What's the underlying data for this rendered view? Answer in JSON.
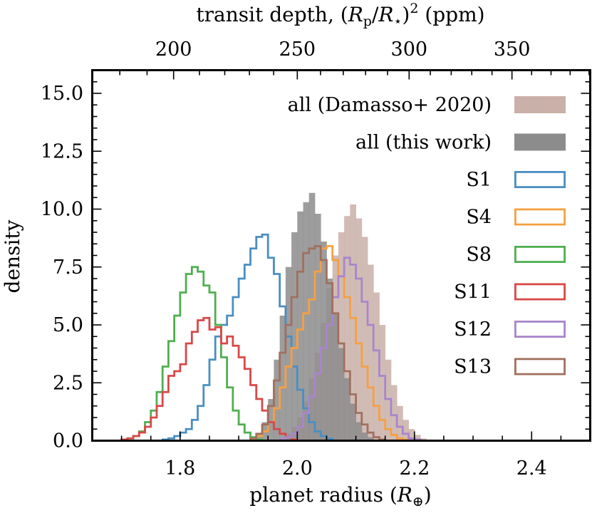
{
  "chart_data": {
    "type": "histogram",
    "xlabel": "planet radius (R⊕)",
    "ylabel": "density",
    "top_xlabel": "transit depth, (Rp/R⋆)² (ppm)",
    "xlim": [
      1.65,
      2.5
    ],
    "ylim": [
      0,
      16
    ],
    "xticks": [
      1.8,
      2.0,
      2.2,
      2.4
    ],
    "xtick_labels": [
      "1.8",
      "2.0",
      "2.2",
      "2.4"
    ],
    "yticks": [
      0,
      2.5,
      5,
      7.5,
      10,
      12.5,
      15
    ],
    "ytick_labels": [
      "0.0",
      "2.5",
      "5.0",
      "7.5",
      "10.0",
      "12.5",
      "15.0"
    ],
    "top_xticks_ppm": [
      200,
      250,
      300,
      350
    ],
    "top_xtick_labels": [
      "200",
      "250",
      "300",
      "350"
    ],
    "radius_at_ppm_250": 2.0,
    "legend_position": "right",
    "series": [
      {
        "name": "all (Damasso+ 2020)",
        "style": "filled",
        "color": "#c9b0a8",
        "start": 1.96,
        "width": 0.01,
        "values": [
          0.05,
          0.1,
          0.3,
          0.6,
          1.0,
          1.7,
          2.7,
          3.8,
          5.1,
          6.6,
          8.0,
          9.0,
          9.7,
          10.2,
          9.6,
          8.8,
          7.6,
          6.4,
          5.0,
          3.5,
          2.4,
          1.5,
          0.9,
          0.5,
          0.25,
          0.1,
          0.05
        ]
      },
      {
        "name": "all (this work)",
        "style": "filled",
        "color": "#8c8c8c",
        "start": 1.92,
        "width": 0.01,
        "values": [
          0.1,
          0.3,
          0.8,
          1.8,
          3.5,
          5.4,
          7.5,
          9.0,
          9.9,
          10.3,
          10.7,
          9.8,
          8.6,
          7.0,
          5.5,
          4.0,
          2.7,
          1.6,
          0.8,
          0.35,
          0.15,
          0.05
        ]
      },
      {
        "name": "S1",
        "style": "step",
        "color": "#4a8ec2",
        "start": 1.77,
        "width": 0.01,
        "values": [
          0.05,
          0.1,
          0.2,
          0.35,
          0.5,
          0.9,
          1.5,
          2.4,
          3.5,
          4.5,
          5.0,
          5.4,
          6.2,
          7.0,
          7.6,
          8.3,
          8.8,
          8.9,
          7.9,
          7.2,
          5.8,
          4.5,
          3.2,
          2.2,
          1.4,
          0.8,
          0.4,
          0.2,
          0.08
        ]
      },
      {
        "name": "S4",
        "style": "step",
        "color": "#f5a043",
        "start": 1.92,
        "width": 0.01,
        "values": [
          0.05,
          0.2,
          0.4,
          0.8,
          1.4,
          2.3,
          3.2,
          4.0,
          4.8,
          5.5,
          6.1,
          7.3,
          8.3,
          8.4,
          7.8,
          7.1,
          6.2,
          5.3,
          4.2,
          3.2,
          2.3,
          1.5,
          0.9,
          0.5,
          0.25,
          0.1,
          0.05
        ]
      },
      {
        "name": "S8",
        "style": "step",
        "color": "#4fae50",
        "start": 1.7,
        "width": 0.01,
        "values": [
          0.05,
          0.1,
          0.2,
          0.4,
          0.8,
          1.3,
          2.1,
          3.2,
          4.3,
          5.4,
          6.4,
          7.2,
          7.5,
          7.3,
          6.7,
          6.4,
          5.0,
          3.6,
          2.3,
          1.3,
          0.7,
          0.35,
          0.15,
          0.05
        ]
      },
      {
        "name": "S11",
        "style": "step",
        "color": "#d94848",
        "start": 1.7,
        "width": 0.01,
        "values": [
          0.05,
          0.1,
          0.2,
          0.35,
          0.6,
          1.0,
          1.5,
          2.1,
          2.8,
          3.0,
          3.3,
          4.2,
          4.7,
          5.2,
          5.3,
          4.8,
          4.9,
          4.2,
          4.5,
          4.1,
          3.6,
          3.1,
          2.4,
          1.8,
          1.3,
          0.8,
          0.5,
          0.3,
          0.15,
          0.05
        ]
      },
      {
        "name": "S12",
        "style": "step",
        "color": "#a985cc",
        "start": 1.97,
        "width": 0.01,
        "values": [
          0.05,
          0.15,
          0.3,
          0.6,
          1.2,
          1.9,
          2.9,
          4.0,
          5.0,
          6.2,
          7.1,
          7.9,
          7.6,
          7.0,
          6.0,
          5.0,
          3.9,
          2.8,
          1.8,
          1.1,
          0.6,
          0.3,
          0.1,
          0.05
        ]
      },
      {
        "name": "S13",
        "style": "step",
        "color": "#a0705f",
        "start": 1.92,
        "width": 0.01,
        "values": [
          0.1,
          0.3,
          0.7,
          1.5,
          2.6,
          3.8,
          5.0,
          6.2,
          7.3,
          8.1,
          8.3,
          8.4,
          7.8,
          6.8,
          5.5,
          4.2,
          3.0,
          2.0,
          1.2,
          0.7,
          0.35,
          0.15,
          0.05
        ]
      }
    ]
  }
}
